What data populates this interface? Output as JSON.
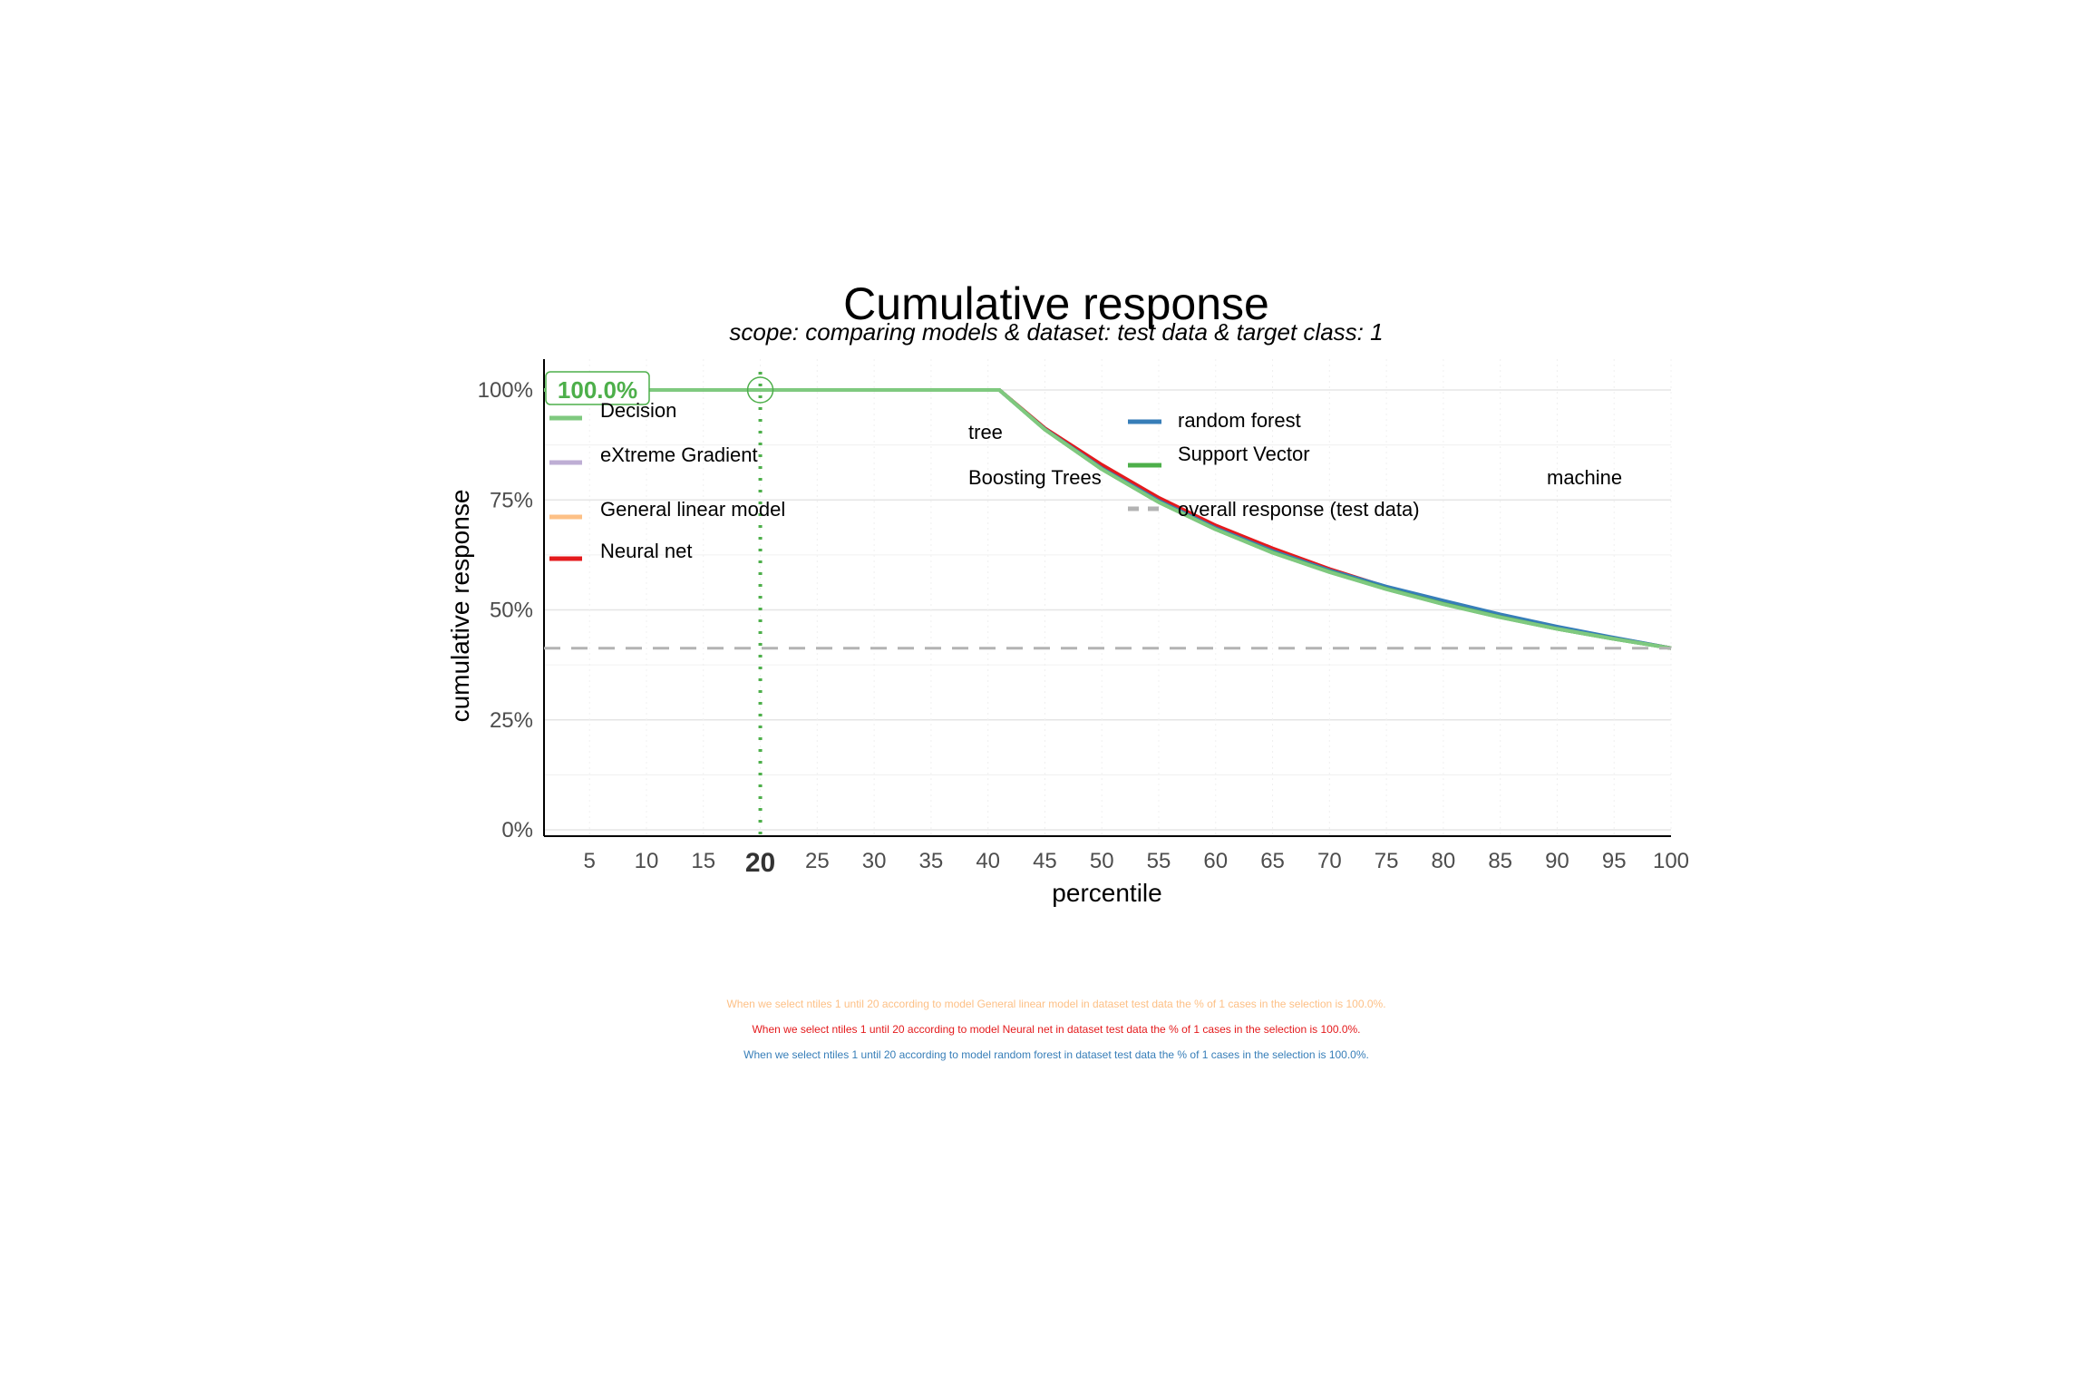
{
  "chart_data": {
    "type": "line",
    "title": "Cumulative response",
    "subtitle": "scope: comparing models & dataset: test data & target class: 1",
    "xlabel": "percentile",
    "ylabel": "cumulative response",
    "xlim": [
      1,
      100
    ],
    "ylim": [
      0,
      1
    ],
    "x_ticks": [
      "5",
      "10",
      "15",
      "20",
      "25",
      "30",
      "35",
      "40",
      "45",
      "50",
      "55",
      "60",
      "65",
      "70",
      "75",
      "80",
      "85",
      "90",
      "95",
      "100"
    ],
    "highlight_tick": "20",
    "y_ticks": [
      {
        "value": 0,
        "label": "0%"
      },
      {
        "value": 0.25,
        "label": "25%"
      },
      {
        "value": 0.5,
        "label": "50%"
      },
      {
        "value": 0.75,
        "label": "75%"
      },
      {
        "value": 1,
        "label": "100%"
      }
    ],
    "grid": true,
    "legend_position": "inside-top",
    "series": [
      {
        "name": "Decision tree",
        "color": "#7fc97f",
        "x": [
          1,
          41,
          45,
          50,
          55,
          60,
          65,
          70,
          75,
          80,
          85,
          90,
          95,
          100
        ],
        "y": [
          1,
          1,
          0.91,
          0.82,
          0.745,
          0.683,
          0.63,
          0.586,
          0.547,
          0.513,
          0.483,
          0.457,
          0.434,
          0.413
        ]
      },
      {
        "name": "eXtreme Gradient Boosting Trees",
        "color": "#beaed4",
        "x": [
          1,
          41,
          45,
          50,
          55,
          60,
          65,
          70,
          75,
          80,
          85,
          90,
          95,
          100
        ],
        "y": [
          1,
          1,
          0.911,
          0.822,
          0.747,
          0.685,
          0.632,
          0.588,
          0.549,
          0.515,
          0.485,
          0.458,
          0.435,
          0.413
        ]
      },
      {
        "name": "General linear model",
        "color": "#fdc086",
        "x": [
          1,
          41,
          45,
          50,
          55,
          60,
          65,
          70,
          75,
          80,
          85,
          90,
          95,
          100
        ],
        "y": [
          1,
          1,
          0.912,
          0.825,
          0.75,
          0.688,
          0.635,
          0.589,
          0.55,
          0.516,
          0.486,
          0.459,
          0.435,
          0.413
        ]
      },
      {
        "name": "Neural net",
        "color": "#e41a1c",
        "x": [
          1,
          41,
          45,
          50,
          55,
          60,
          65,
          70,
          75,
          80,
          85,
          90,
          95,
          100
        ],
        "y": [
          1,
          1,
          0.913,
          0.83,
          0.755,
          0.692,
          0.64,
          0.593,
          0.552,
          0.518,
          0.487,
          0.46,
          0.436,
          0.413
        ]
      },
      {
        "name": "random forest",
        "color": "#377eb8",
        "x": [
          1,
          41,
          45,
          50,
          55,
          60,
          65,
          70,
          75,
          80,
          85,
          90,
          95,
          100
        ],
        "y": [
          1,
          1,
          0.911,
          0.822,
          0.748,
          0.686,
          0.634,
          0.59,
          0.553,
          0.521,
          0.49,
          0.462,
          0.437,
          0.413
        ]
      },
      {
        "name": "Support Vector machine",
        "color": "#4daf4a",
        "x": [
          1,
          41,
          45,
          50,
          55,
          60,
          65,
          70,
          75,
          80,
          85,
          90,
          95,
          100
        ],
        "y": [
          1,
          1,
          0.91,
          0.82,
          0.745,
          0.683,
          0.631,
          0.587,
          0.548,
          0.514,
          0.484,
          0.457,
          0.434,
          0.413
        ]
      },
      {
        "name": "Decision tree (highlight)",
        "color": "#7fc97f",
        "x": [
          1,
          41,
          45,
          50,
          55,
          60,
          65,
          70,
          75,
          80,
          85,
          90,
          95,
          100
        ],
        "y": [
          1,
          1,
          0.91,
          0.82,
          0.745,
          0.683,
          0.63,
          0.586,
          0.547,
          0.513,
          0.483,
          0.457,
          0.434,
          0.413
        ]
      }
    ],
    "reference_line": {
      "name": "overall response (test data)",
      "value": 0.413,
      "color": "#b3b3b3"
    },
    "highlight": {
      "x": 20,
      "y": 1.0,
      "label": "100.0%",
      "color": "#4daf4a"
    }
  },
  "legend_left": [
    {
      "label": "Decision",
      "color": "#7fc97f",
      "style": "solid"
    },
    {
      "label": "eXtreme Gradient",
      "color": "#beaed4",
      "style": "solid"
    },
    {
      "label": "General linear model",
      "color": "#fdc086",
      "style": "solid"
    },
    {
      "label": "Neural net",
      "color": "#e41a1c",
      "style": "solid"
    }
  ],
  "legend_left_cont": [
    {
      "label": "tree"
    },
    {
      "label": "Boosting Trees"
    }
  ],
  "legend_right": [
    {
      "label": "random forest",
      "color": "#377eb8",
      "style": "solid"
    },
    {
      "label": "Support Vector",
      "color": "#4daf4a",
      "style": "solid"
    },
    {
      "label": "overall response (test data)",
      "color": "#b3b3b3",
      "style": "dashed"
    }
  ],
  "legend_right_cont": [
    {
      "label": "machine"
    }
  ],
  "notes": [
    {
      "text": "When we select ntiles 1 until 20 according to model General linear model in dataset test data the % of 1 cases in the selection is 100.0%.",
      "color": "#fdc086"
    },
    {
      "text": "When we select ntiles 1 until 20 according to model Neural net in dataset test data the % of 1 cases in the selection is 100.0%.",
      "color": "#e41a1c"
    },
    {
      "text": "When we select ntiles 1 until 20 according to model random forest in dataset test data the % of 1 cases in the selection is 100.0%.",
      "color": "#377eb8"
    }
  ]
}
